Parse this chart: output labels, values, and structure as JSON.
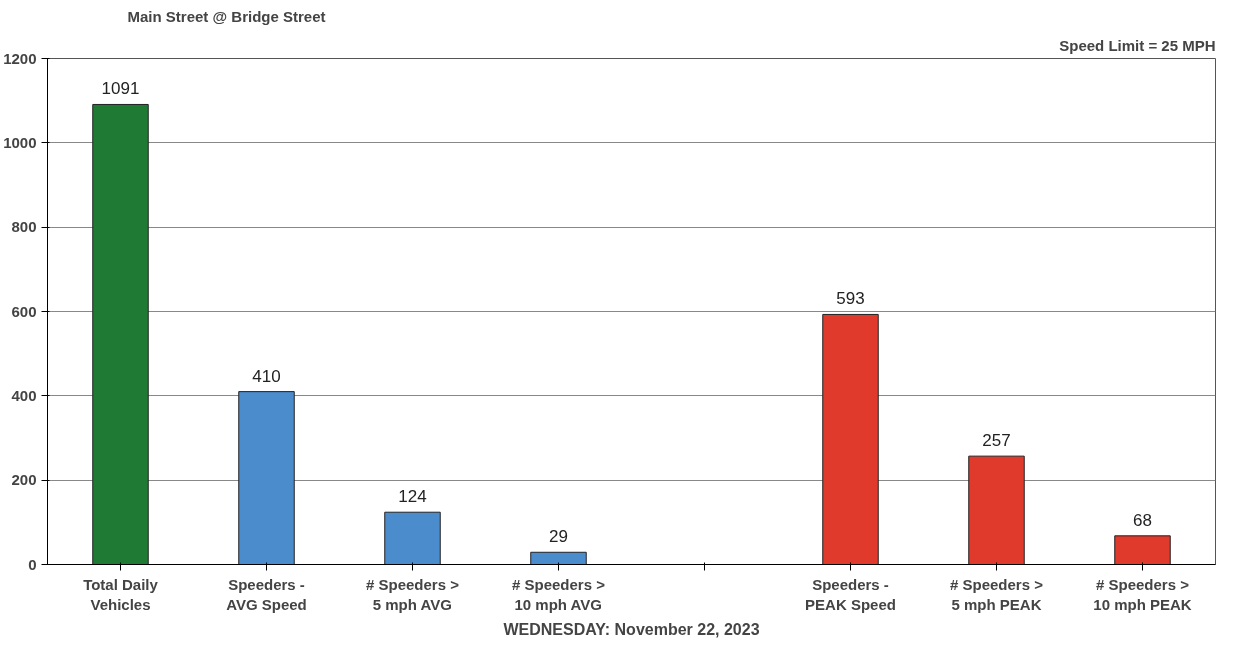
{
  "chart_data": {
    "type": "bar",
    "title": "Main Street @ Bridge Street",
    "xlabel": "WEDNESDAY: November 22, 2023",
    "annotations": [
      "Speed Limit = 25 MPH"
    ],
    "categories": [
      "Total Daily Vehicles",
      "Speeders - AVG Speed",
      "# Speeders > 5 mph AVG",
      "# Speeders > 10 mph AVG",
      null,
      "Speeders - PEAK Speed",
      "# Speeders > 5 mph PEAK",
      "# Speeders > 10 mph PEAK"
    ],
    "values": [
      1091,
      410,
      124,
      29,
      null,
      593,
      257,
      68
    ],
    "colors": [
      "#1f7a33",
      "#4a8ccc",
      "#4a8ccc",
      "#4a8ccc",
      "#4a8ccc",
      "#e03a2c",
      "#e03a2c",
      "#e03a2c"
    ],
    "data_labels": true,
    "ylim": [
      0,
      1200
    ],
    "yticks": [
      0,
      200,
      400,
      600,
      800,
      1000,
      1200
    ],
    "grid": "y"
  }
}
